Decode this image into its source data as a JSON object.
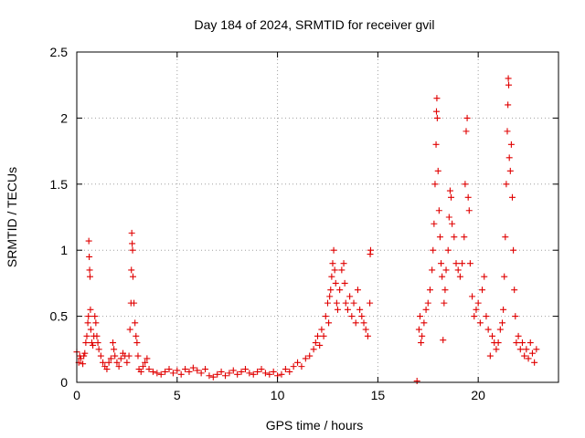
{
  "chart_data": {
    "type": "scatter",
    "title": "Day 184 of 2024, SRMTID for receiver gvil",
    "xlabel": "GPS time / hours",
    "ylabel": "SRMTID / TECUs",
    "xlim": [
      0,
      24
    ],
    "ylim": [
      0,
      2.5
    ],
    "x_ticks": [
      0,
      5,
      10,
      15,
      20
    ],
    "y_ticks": [
      0,
      0.5,
      1,
      1.5,
      2,
      2.5
    ],
    "x_tick_labels": [
      "0",
      "5",
      "10",
      "15",
      "20"
    ],
    "y_tick_labels": [
      "0",
      "0.5",
      "1",
      "1.5",
      "2",
      "2.5"
    ],
    "grid": true,
    "marker": "+",
    "colors": {
      "series": "#e00000",
      "grid": "#a0a0a0",
      "axis": "#000000"
    },
    "series": [
      {
        "name": "SRMTID",
        "points": [
          [
            0.0,
            0.23
          ],
          [
            0.1,
            0.15
          ],
          [
            0.15,
            0.2
          ],
          [
            0.2,
            0.18
          ],
          [
            0.3,
            0.14
          ],
          [
            0.35,
            0.2
          ],
          [
            0.4,
            0.22
          ],
          [
            0.45,
            0.3
          ],
          [
            0.5,
            0.35
          ],
          [
            0.55,
            0.45
          ],
          [
            0.58,
            0.5
          ],
          [
            0.6,
            1.07
          ],
          [
            0.62,
            0.95
          ],
          [
            0.64,
            0.85
          ],
          [
            0.66,
            0.8
          ],
          [
            0.68,
            0.55
          ],
          [
            0.7,
            0.4
          ],
          [
            0.75,
            0.3
          ],
          [
            0.8,
            0.28
          ],
          [
            0.85,
            0.35
          ],
          [
            0.9,
            0.5
          ],
          [
            0.95,
            0.45
          ],
          [
            1.0,
            0.35
          ],
          [
            1.05,
            0.3
          ],
          [
            1.1,
            0.25
          ],
          [
            1.2,
            0.2
          ],
          [
            1.3,
            0.15
          ],
          [
            1.4,
            0.12
          ],
          [
            1.5,
            0.1
          ],
          [
            1.6,
            0.15
          ],
          [
            1.7,
            0.18
          ],
          [
            1.8,
            0.3
          ],
          [
            1.85,
            0.25
          ],
          [
            1.9,
            0.2
          ],
          [
            2.0,
            0.15
          ],
          [
            2.1,
            0.12
          ],
          [
            2.2,
            0.18
          ],
          [
            2.3,
            0.22
          ],
          [
            2.4,
            0.2
          ],
          [
            2.5,
            0.15
          ],
          [
            2.6,
            0.2
          ],
          [
            2.65,
            0.4
          ],
          [
            2.7,
            0.6
          ],
          [
            2.72,
            0.85
          ],
          [
            2.74,
            1.13
          ],
          [
            2.76,
            1.05
          ],
          [
            2.78,
            1.0
          ],
          [
            2.8,
            0.8
          ],
          [
            2.85,
            0.6
          ],
          [
            2.9,
            0.45
          ],
          [
            2.95,
            0.35
          ],
          [
            3.0,
            0.3
          ],
          [
            3.05,
            0.2
          ],
          [
            3.1,
            0.1
          ],
          [
            3.2,
            0.08
          ],
          [
            3.3,
            0.12
          ],
          [
            3.4,
            0.15
          ],
          [
            3.5,
            0.18
          ],
          [
            3.6,
            0.1
          ],
          [
            3.8,
            0.08
          ],
          [
            4.0,
            0.07
          ],
          [
            4.2,
            0.06
          ],
          [
            4.4,
            0.08
          ],
          [
            4.6,
            0.1
          ],
          [
            4.8,
            0.07
          ],
          [
            5.0,
            0.09
          ],
          [
            5.2,
            0.06
          ],
          [
            5.4,
            0.1
          ],
          [
            5.6,
            0.08
          ],
          [
            5.8,
            0.11
          ],
          [
            6.0,
            0.09
          ],
          [
            6.2,
            0.07
          ],
          [
            6.4,
            0.1
          ],
          [
            6.6,
            0.05
          ],
          [
            6.8,
            0.04
          ],
          [
            7.0,
            0.06
          ],
          [
            7.2,
            0.08
          ],
          [
            7.4,
            0.05
          ],
          [
            7.6,
            0.07
          ],
          [
            7.8,
            0.09
          ],
          [
            8.0,
            0.06
          ],
          [
            8.2,
            0.08
          ],
          [
            8.4,
            0.1
          ],
          [
            8.6,
            0.07
          ],
          [
            8.8,
            0.06
          ],
          [
            9.0,
            0.08
          ],
          [
            9.2,
            0.1
          ],
          [
            9.4,
            0.07
          ],
          [
            9.6,
            0.06
          ],
          [
            9.8,
            0.08
          ],
          [
            10.0,
            0.05
          ],
          [
            10.2,
            0.06
          ],
          [
            10.4,
            0.1
          ],
          [
            10.6,
            0.08
          ],
          [
            10.8,
            0.12
          ],
          [
            11.0,
            0.15
          ],
          [
            11.2,
            0.12
          ],
          [
            11.4,
            0.18
          ],
          [
            11.6,
            0.2
          ],
          [
            11.8,
            0.25
          ],
          [
            11.9,
            0.3
          ],
          [
            12.0,
            0.35
          ],
          [
            12.1,
            0.28
          ],
          [
            12.2,
            0.4
          ],
          [
            12.3,
            0.35
          ],
          [
            12.4,
            0.5
          ],
          [
            12.5,
            0.6
          ],
          [
            12.55,
            0.45
          ],
          [
            12.6,
            0.65
          ],
          [
            12.65,
            0.7
          ],
          [
            12.7,
            0.8
          ],
          [
            12.75,
            0.9
          ],
          [
            12.8,
            1.0
          ],
          [
            12.85,
            0.85
          ],
          [
            12.9,
            0.75
          ],
          [
            12.95,
            0.6
          ],
          [
            13.0,
            0.55
          ],
          [
            13.1,
            0.7
          ],
          [
            13.2,
            0.85
          ],
          [
            13.3,
            0.9
          ],
          [
            13.35,
            0.75
          ],
          [
            13.4,
            0.6
          ],
          [
            13.5,
            0.55
          ],
          [
            13.6,
            0.65
          ],
          [
            13.7,
            0.5
          ],
          [
            13.8,
            0.6
          ],
          [
            13.9,
            0.45
          ],
          [
            14.0,
            0.7
          ],
          [
            14.1,
            0.55
          ],
          [
            14.2,
            0.5
          ],
          [
            14.3,
            0.45
          ],
          [
            14.4,
            0.4
          ],
          [
            14.5,
            0.35
          ],
          [
            14.6,
            0.6
          ],
          [
            14.62,
            0.97
          ],
          [
            14.64,
            1.0
          ],
          [
            16.95,
            0.01
          ],
          [
            17.05,
            0.4
          ],
          [
            17.1,
            0.5
          ],
          [
            17.15,
            0.3
          ],
          [
            17.2,
            0.35
          ],
          [
            17.3,
            0.45
          ],
          [
            17.4,
            0.55
          ],
          [
            17.5,
            0.6
          ],
          [
            17.6,
            0.7
          ],
          [
            17.7,
            0.85
          ],
          [
            17.75,
            1.0
          ],
          [
            17.8,
            1.2
          ],
          [
            17.85,
            1.5
          ],
          [
            17.9,
            1.8
          ],
          [
            17.92,
            2.05
          ],
          [
            17.94,
            2.15
          ],
          [
            17.96,
            2.0
          ],
          [
            18.0,
            1.6
          ],
          [
            18.05,
            1.3
          ],
          [
            18.1,
            1.1
          ],
          [
            18.15,
            0.9
          ],
          [
            18.2,
            0.8
          ],
          [
            18.25,
            0.32
          ],
          [
            18.3,
            0.6
          ],
          [
            18.35,
            0.7
          ],
          [
            18.4,
            0.85
          ],
          [
            18.5,
            1.0
          ],
          [
            18.55,
            1.25
          ],
          [
            18.6,
            1.45
          ],
          [
            18.65,
            1.4
          ],
          [
            18.7,
            1.2
          ],
          [
            18.8,
            1.1
          ],
          [
            18.9,
            0.9
          ],
          [
            19.0,
            0.85
          ],
          [
            19.1,
            0.8
          ],
          [
            19.2,
            0.9
          ],
          [
            19.3,
            1.1
          ],
          [
            19.35,
            1.5
          ],
          [
            19.4,
            1.9
          ],
          [
            19.45,
            2.0
          ],
          [
            19.5,
            1.4
          ],
          [
            19.55,
            1.3
          ],
          [
            19.6,
            0.9
          ],
          [
            19.7,
            0.65
          ],
          [
            19.8,
            0.5
          ],
          [
            19.9,
            0.55
          ],
          [
            20.0,
            0.6
          ],
          [
            20.1,
            0.45
          ],
          [
            20.2,
            0.7
          ],
          [
            20.3,
            0.8
          ],
          [
            20.4,
            0.5
          ],
          [
            20.5,
            0.4
          ],
          [
            20.6,
            0.2
          ],
          [
            20.7,
            0.35
          ],
          [
            20.8,
            0.3
          ],
          [
            20.9,
            0.25
          ],
          [
            21.0,
            0.3
          ],
          [
            21.1,
            0.4
          ],
          [
            21.2,
            0.45
          ],
          [
            21.25,
            0.55
          ],
          [
            21.3,
            0.8
          ],
          [
            21.35,
            1.1
          ],
          [
            21.4,
            1.5
          ],
          [
            21.45,
            1.9
          ],
          [
            21.48,
            2.1
          ],
          [
            21.5,
            2.3
          ],
          [
            21.52,
            2.25
          ],
          [
            21.55,
            1.7
          ],
          [
            21.6,
            1.6
          ],
          [
            21.65,
            1.8
          ],
          [
            21.7,
            1.4
          ],
          [
            21.75,
            1.0
          ],
          [
            21.8,
            0.7
          ],
          [
            21.85,
            0.5
          ],
          [
            21.9,
            0.3
          ],
          [
            22.0,
            0.35
          ],
          [
            22.1,
            0.25
          ],
          [
            22.2,
            0.3
          ],
          [
            22.3,
            0.2
          ],
          [
            22.4,
            0.25
          ],
          [
            22.5,
            0.18
          ],
          [
            22.6,
            0.3
          ],
          [
            22.7,
            0.22
          ],
          [
            22.8,
            0.15
          ],
          [
            22.9,
            0.25
          ]
        ]
      }
    ]
  }
}
